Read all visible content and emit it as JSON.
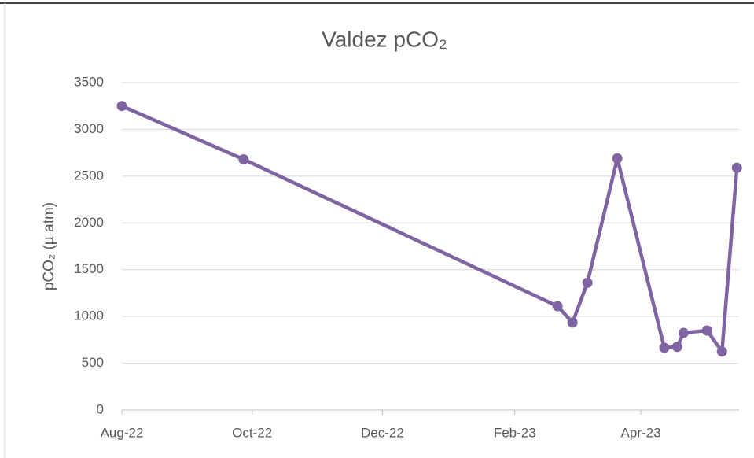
{
  "chart_data": {
    "type": "line",
    "title": "Valdez pCO₂",
    "ylabel": "pCO₂ (µ atm)",
    "x": [
      0,
      57,
      204,
      211,
      218,
      232,
      254,
      260,
      263,
      274,
      281,
      288
    ],
    "series": [
      {
        "name": "pCO₂",
        "color": "#8064a2",
        "values": [
          3250,
          2680,
          1110,
          935,
          1360,
          2690,
          665,
          675,
          825,
          850,
          625,
          2590
        ]
      }
    ],
    "xlim": [
      0,
      289
    ],
    "xticks": [
      {
        "value": 0,
        "label": "Aug-22"
      },
      {
        "value": 61,
        "label": "Oct-22"
      },
      {
        "value": 122,
        "label": "Dec-22"
      },
      {
        "value": 184,
        "label": "Feb-23"
      },
      {
        "value": 243,
        "label": "Apr-23"
      }
    ],
    "ylim": [
      0,
      3500
    ],
    "yticks": [
      0,
      500,
      1000,
      1500,
      2000,
      2500,
      3000,
      3500
    ],
    "grid": true
  }
}
